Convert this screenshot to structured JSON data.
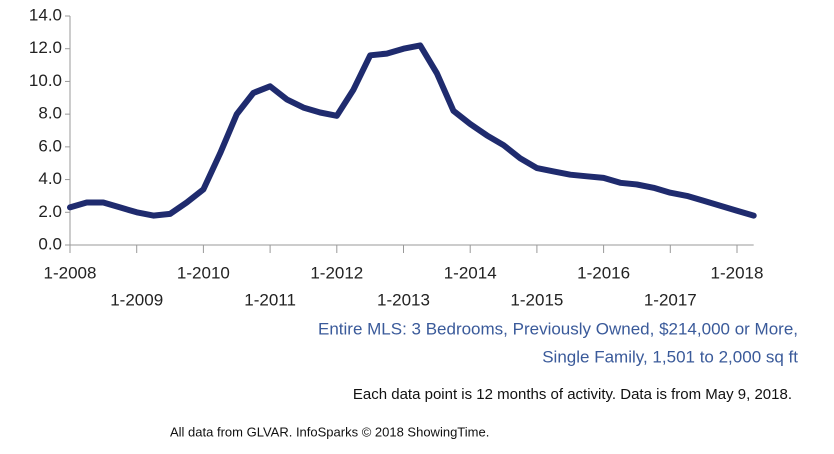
{
  "chart_data": {
    "type": "line",
    "subtitle": [
      "Entire MLS: 3 Bedrooms, Previously Owned, $214,000 or More,",
      "Single Family, 1,501 to 2,000 sq ft"
    ],
    "note": "Each data point is 12 months of activity. Data is from May 9, 2018.",
    "source": "All data from GLVAR. InfoSparks © 2018 ShowingTime.",
    "x": [
      "1-2008",
      "4-2008",
      "7-2008",
      "10-2008",
      "1-2009",
      "4-2009",
      "7-2009",
      "10-2009",
      "1-2010",
      "4-2010",
      "7-2010",
      "10-2010",
      "1-2011",
      "4-2011",
      "7-2011",
      "10-2011",
      "1-2012",
      "4-2012",
      "7-2012",
      "10-2012",
      "1-2013",
      "4-2013",
      "7-2013",
      "10-2013",
      "1-2014",
      "4-2014",
      "7-2014",
      "10-2014",
      "1-2015",
      "4-2015",
      "7-2015",
      "10-2015",
      "1-2016",
      "4-2016",
      "7-2016",
      "10-2016",
      "1-2017",
      "4-2017",
      "7-2017",
      "10-2017",
      "1-2018",
      "4-2018"
    ],
    "series": [
      {
        "color": "#1f2b6e",
        "values": [
          2.3,
          2.6,
          2.6,
          2.3,
          2.0,
          1.8,
          1.9,
          2.6,
          3.4,
          5.6,
          8.0,
          9.3,
          9.7,
          8.9,
          8.4,
          8.1,
          7.9,
          9.5,
          11.6,
          11.7,
          12.0,
          12.2,
          10.5,
          8.2,
          7.4,
          6.7,
          6.1,
          5.3,
          4.7,
          4.5,
          4.3,
          4.2,
          4.1,
          3.8,
          3.7,
          3.5,
          3.2,
          3.0,
          2.7,
          2.4,
          2.1,
          1.8
        ]
      }
    ],
    "xticks": [
      "1-2008",
      "1-2009",
      "1-2010",
      "1-2011",
      "1-2012",
      "1-2013",
      "1-2014",
      "1-2015",
      "1-2016",
      "1-2017",
      "1-2018"
    ],
    "ylim": [
      0,
      14
    ],
    "yticks": [
      {
        "value": 0,
        "label": "0.0"
      },
      {
        "value": 2,
        "label": "2.0"
      },
      {
        "value": 4,
        "label": "4.0"
      },
      {
        "value": 6,
        "label": "6.0"
      },
      {
        "value": 8,
        "label": "8.0"
      },
      {
        "value": 10,
        "label": "10.0"
      },
      {
        "value": 12,
        "label": "12.0"
      },
      {
        "value": 14,
        "label": "14.0"
      }
    ],
    "grid": false
  }
}
